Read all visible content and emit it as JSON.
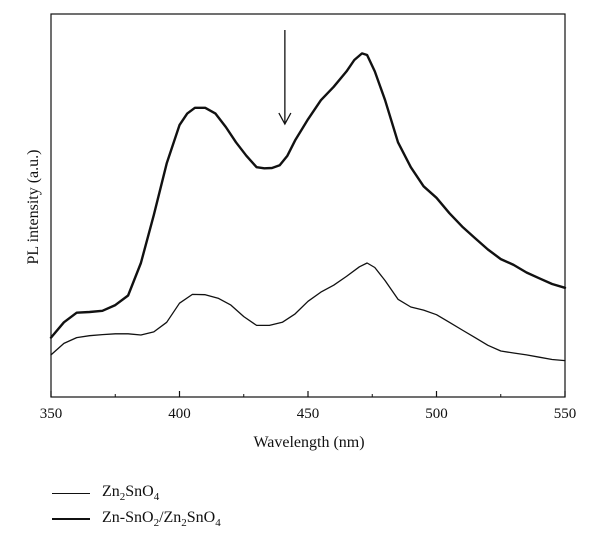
{
  "chart_data": {
    "type": "line",
    "xlabel": "Wavelength (nm)",
    "ylabel": "PL intensity (a.u.)",
    "xlim": [
      350,
      550
    ],
    "ylim": [
      0,
      100
    ],
    "xticks": [
      350,
      400,
      450,
      500,
      550
    ],
    "yticks_shown": false,
    "grid": false,
    "legend_placement": "bottom-left, below plot",
    "annotation": {
      "type": "arrow-down",
      "x": 441
    },
    "series": [
      {
        "name": "Zn2SnO4",
        "name_parts": [
          [
            "Zn",
            ""
          ],
          [
            "2",
            "sub"
          ],
          [
            "SnO",
            ""
          ],
          [
            "4",
            "sub"
          ]
        ],
        "line_weight": "thin",
        "x": [
          350,
          355,
          360,
          365,
          370,
          375,
          380,
          385,
          390,
          395,
          400,
          405,
          410,
          415,
          420,
          425,
          430,
          435,
          440,
          445,
          450,
          455,
          460,
          465,
          470,
          473,
          476,
          480,
          485,
          490,
          495,
          500,
          505,
          510,
          515,
          520,
          525,
          530,
          535,
          540,
          545,
          550
        ],
        "y": [
          11.0,
          14.0,
          15.5,
          16.0,
          16.3,
          16.5,
          16.5,
          16.2,
          17.0,
          19.5,
          24.5,
          26.8,
          26.7,
          25.8,
          24.0,
          21.0,
          18.7,
          18.7,
          19.5,
          21.7,
          25.0,
          27.4,
          29.2,
          31.5,
          34.0,
          35.0,
          33.8,
          30.4,
          25.5,
          23.5,
          22.7,
          21.5,
          19.5,
          17.5,
          15.5,
          13.5,
          12.0,
          11.5,
          11.0,
          10.4,
          9.8,
          9.5
        ]
      },
      {
        "name": "Zn-SnO2/Zn2SnO4",
        "name_parts": [
          [
            "Zn-SnO",
            ""
          ],
          [
            "2",
            "sub"
          ],
          [
            "/Zn",
            ""
          ],
          [
            "2",
            "sub"
          ],
          [
            "SnO",
            ""
          ],
          [
            "4",
            "sub"
          ]
        ],
        "line_weight": "thick",
        "x": [
          350,
          355,
          360,
          365,
          370,
          375,
          380,
          385,
          390,
          395,
          400,
          403,
          406,
          410,
          414,
          418,
          422,
          426,
          430,
          433,
          436,
          439,
          442,
          445,
          450,
          455,
          460,
          465,
          468,
          471,
          473,
          476,
          480,
          485,
          490,
          495,
          500,
          505,
          510,
          515,
          520,
          525,
          530,
          535,
          540,
          545,
          550
        ],
        "y": [
          15.5,
          19.5,
          22.0,
          22.2,
          22.5,
          24.0,
          26.5,
          35.0,
          47.5,
          61.0,
          71.0,
          74.0,
          75.5,
          75.5,
          74.0,
          70.5,
          66.5,
          63.0,
          60.0,
          59.7,
          59.8,
          60.5,
          63.0,
          67.0,
          72.5,
          77.5,
          81.0,
          85.0,
          88.0,
          89.7,
          89.3,
          85.0,
          77.5,
          66.5,
          60.0,
          55.0,
          52.0,
          48.0,
          44.5,
          41.5,
          38.5,
          36.0,
          34.5,
          32.5,
          31.0,
          29.5,
          28.5
        ]
      }
    ]
  }
}
